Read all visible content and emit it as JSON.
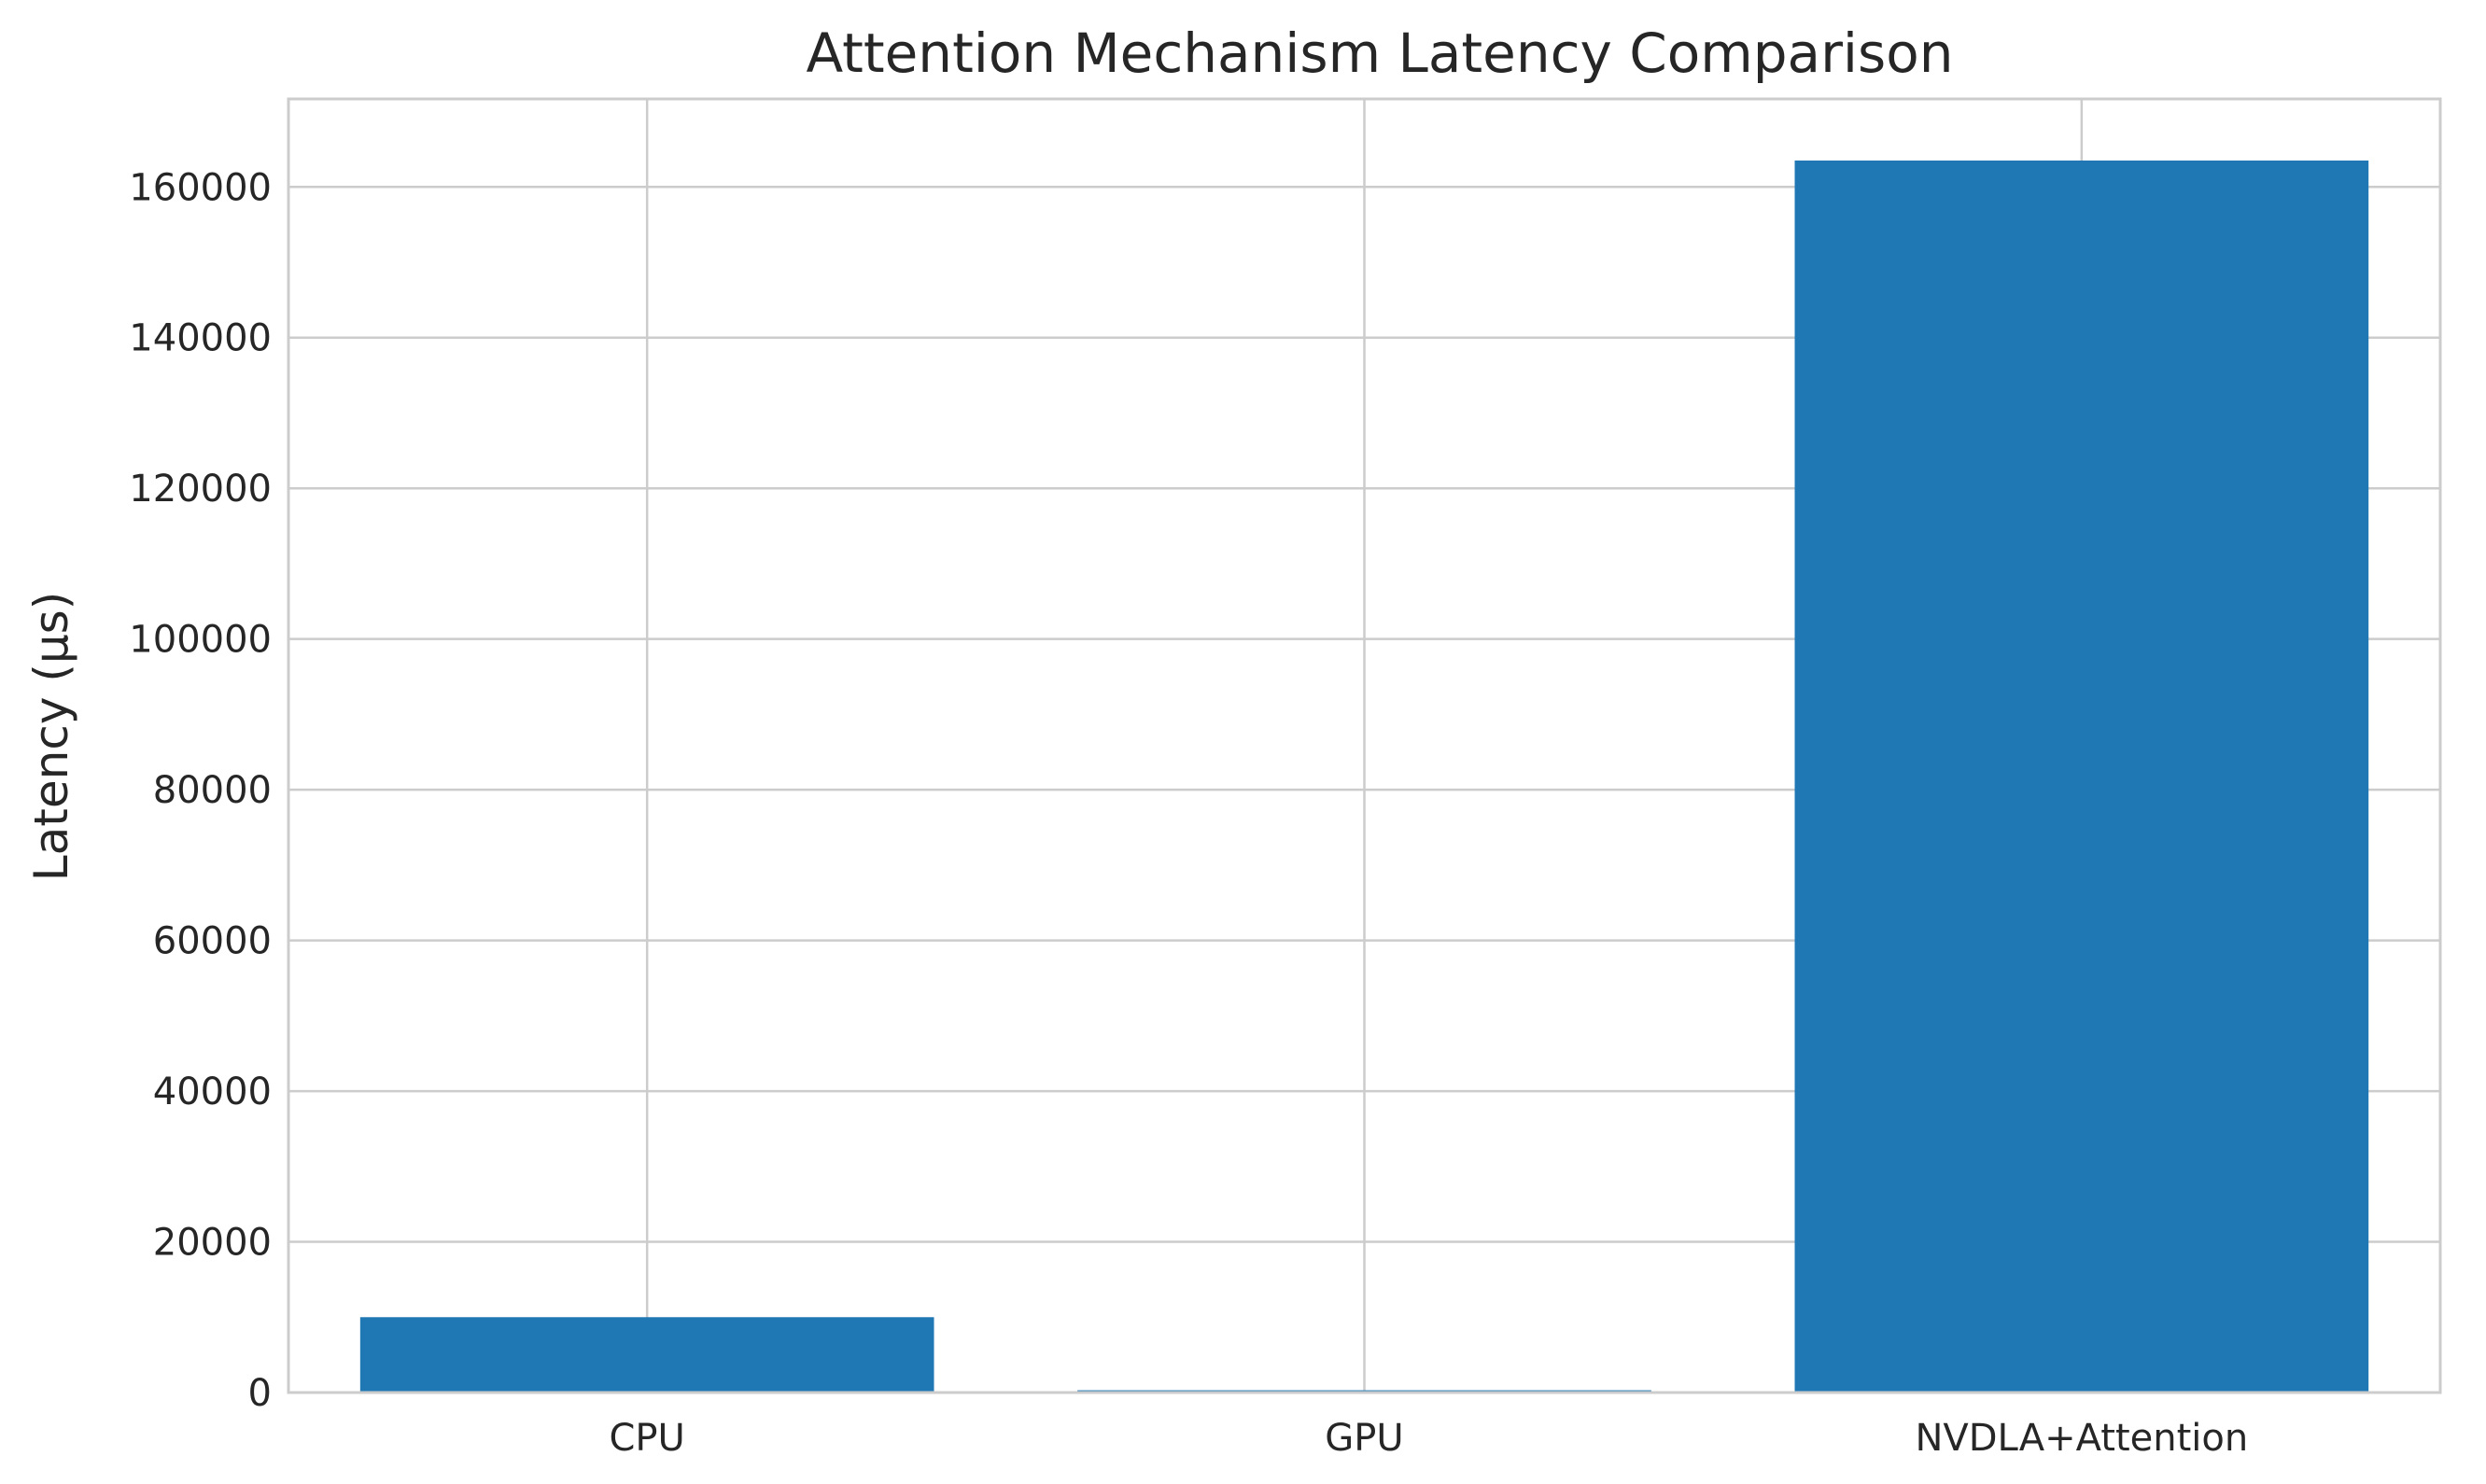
{
  "chart_data": {
    "type": "bar",
    "title": "Attention Mechanism Latency Comparison",
    "xlabel": "",
    "ylabel": "Latency (µs)",
    "categories": [
      "CPU",
      "GPU",
      "NVDLA+Attention"
    ],
    "values": [
      10000,
      300,
      163500
    ],
    "ylim": [
      0,
      171675
    ],
    "yticks": [
      0,
      20000,
      40000,
      60000,
      80000,
      100000,
      120000,
      140000,
      160000
    ],
    "ytick_labels": [
      "0",
      "20000",
      "40000",
      "60000",
      "80000",
      "100000",
      "120000",
      "140000",
      "160000"
    ],
    "grid": true,
    "legend": "none",
    "colors": {
      "bar": "#1f77b4",
      "grid": "#cccccc",
      "spine": "#cccccc",
      "text": "#262626"
    }
  }
}
